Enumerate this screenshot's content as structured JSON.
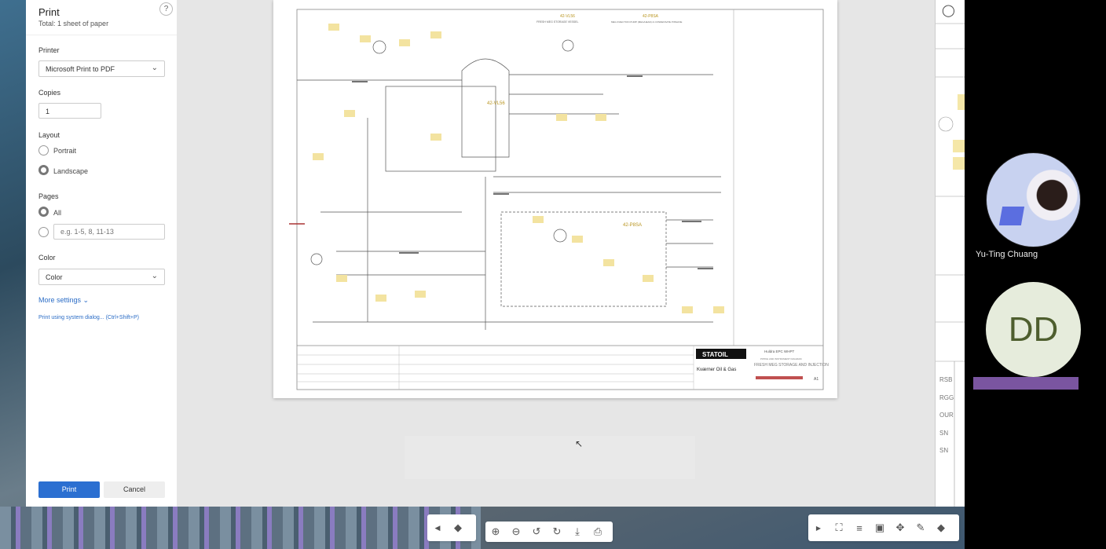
{
  "print_panel": {
    "title": "Print",
    "subtitle": "Total: 1 sheet of paper",
    "help_icon": "?",
    "printer": {
      "label": "Printer",
      "value": "Microsoft Print to PDF"
    },
    "copies": {
      "label": "Copies",
      "value": "1"
    },
    "layout": {
      "label": "Layout",
      "options": [
        "Portrait",
        "Landscape"
      ],
      "selected": "Landscape"
    },
    "pages": {
      "label": "Pages",
      "all": "All",
      "custom_placeholder": "e.g. 1-5, 8, 11-13",
      "selected": "All"
    },
    "color": {
      "label": "Color",
      "value": "Color"
    },
    "more_settings": "More settings",
    "system_dialog": "Print using system dialog... (Ctrl+Shift+P)",
    "print_button": "Print",
    "cancel_button": "Cancel",
    "accent": "#2b6fd1"
  },
  "drawing": {
    "vessel": "42-VL56",
    "pump": "42-P8SA",
    "vessel_title": "FRESH MEG STORAGE VESSEL",
    "pump_title": "MEG INJECTION PUMP (MEG/HEAD) & CONDENSATE PIPELINE",
    "company": "STATOIL",
    "contractor": "Kværner Oil & Gas",
    "project": "Huldra EPC WHPT",
    "doc_type": "PIPING AND INSTRUMENT DIAGRAM",
    "doc_title": "FRESH MEG STORAGE AND INJECTION",
    "size": "A1"
  },
  "right_strip": {
    "labels": [
      "RSB",
      "RGG",
      "OUR",
      "SN",
      "SN"
    ]
  },
  "participants": [
    {
      "name": "Yu-Ting Chuang",
      "type": "video"
    },
    {
      "initials": "DD",
      "color": "#e6ecdc",
      "text_color": "#4e5e2e",
      "name_bar_color": "#7a55a0"
    }
  ],
  "viewer_toolbar": {
    "icons": [
      "zoom-in-icon",
      "zoom-out-icon",
      "rotate-left-icon",
      "rotate-right-icon",
      "download-icon",
      "print-icon"
    ]
  },
  "right_toolbar": {
    "icons": [
      "chevron-right-icon",
      "fullscreen-icon",
      "filter-icon",
      "camera-icon",
      "move-icon",
      "pencil-icon",
      "layers-icon"
    ]
  }
}
